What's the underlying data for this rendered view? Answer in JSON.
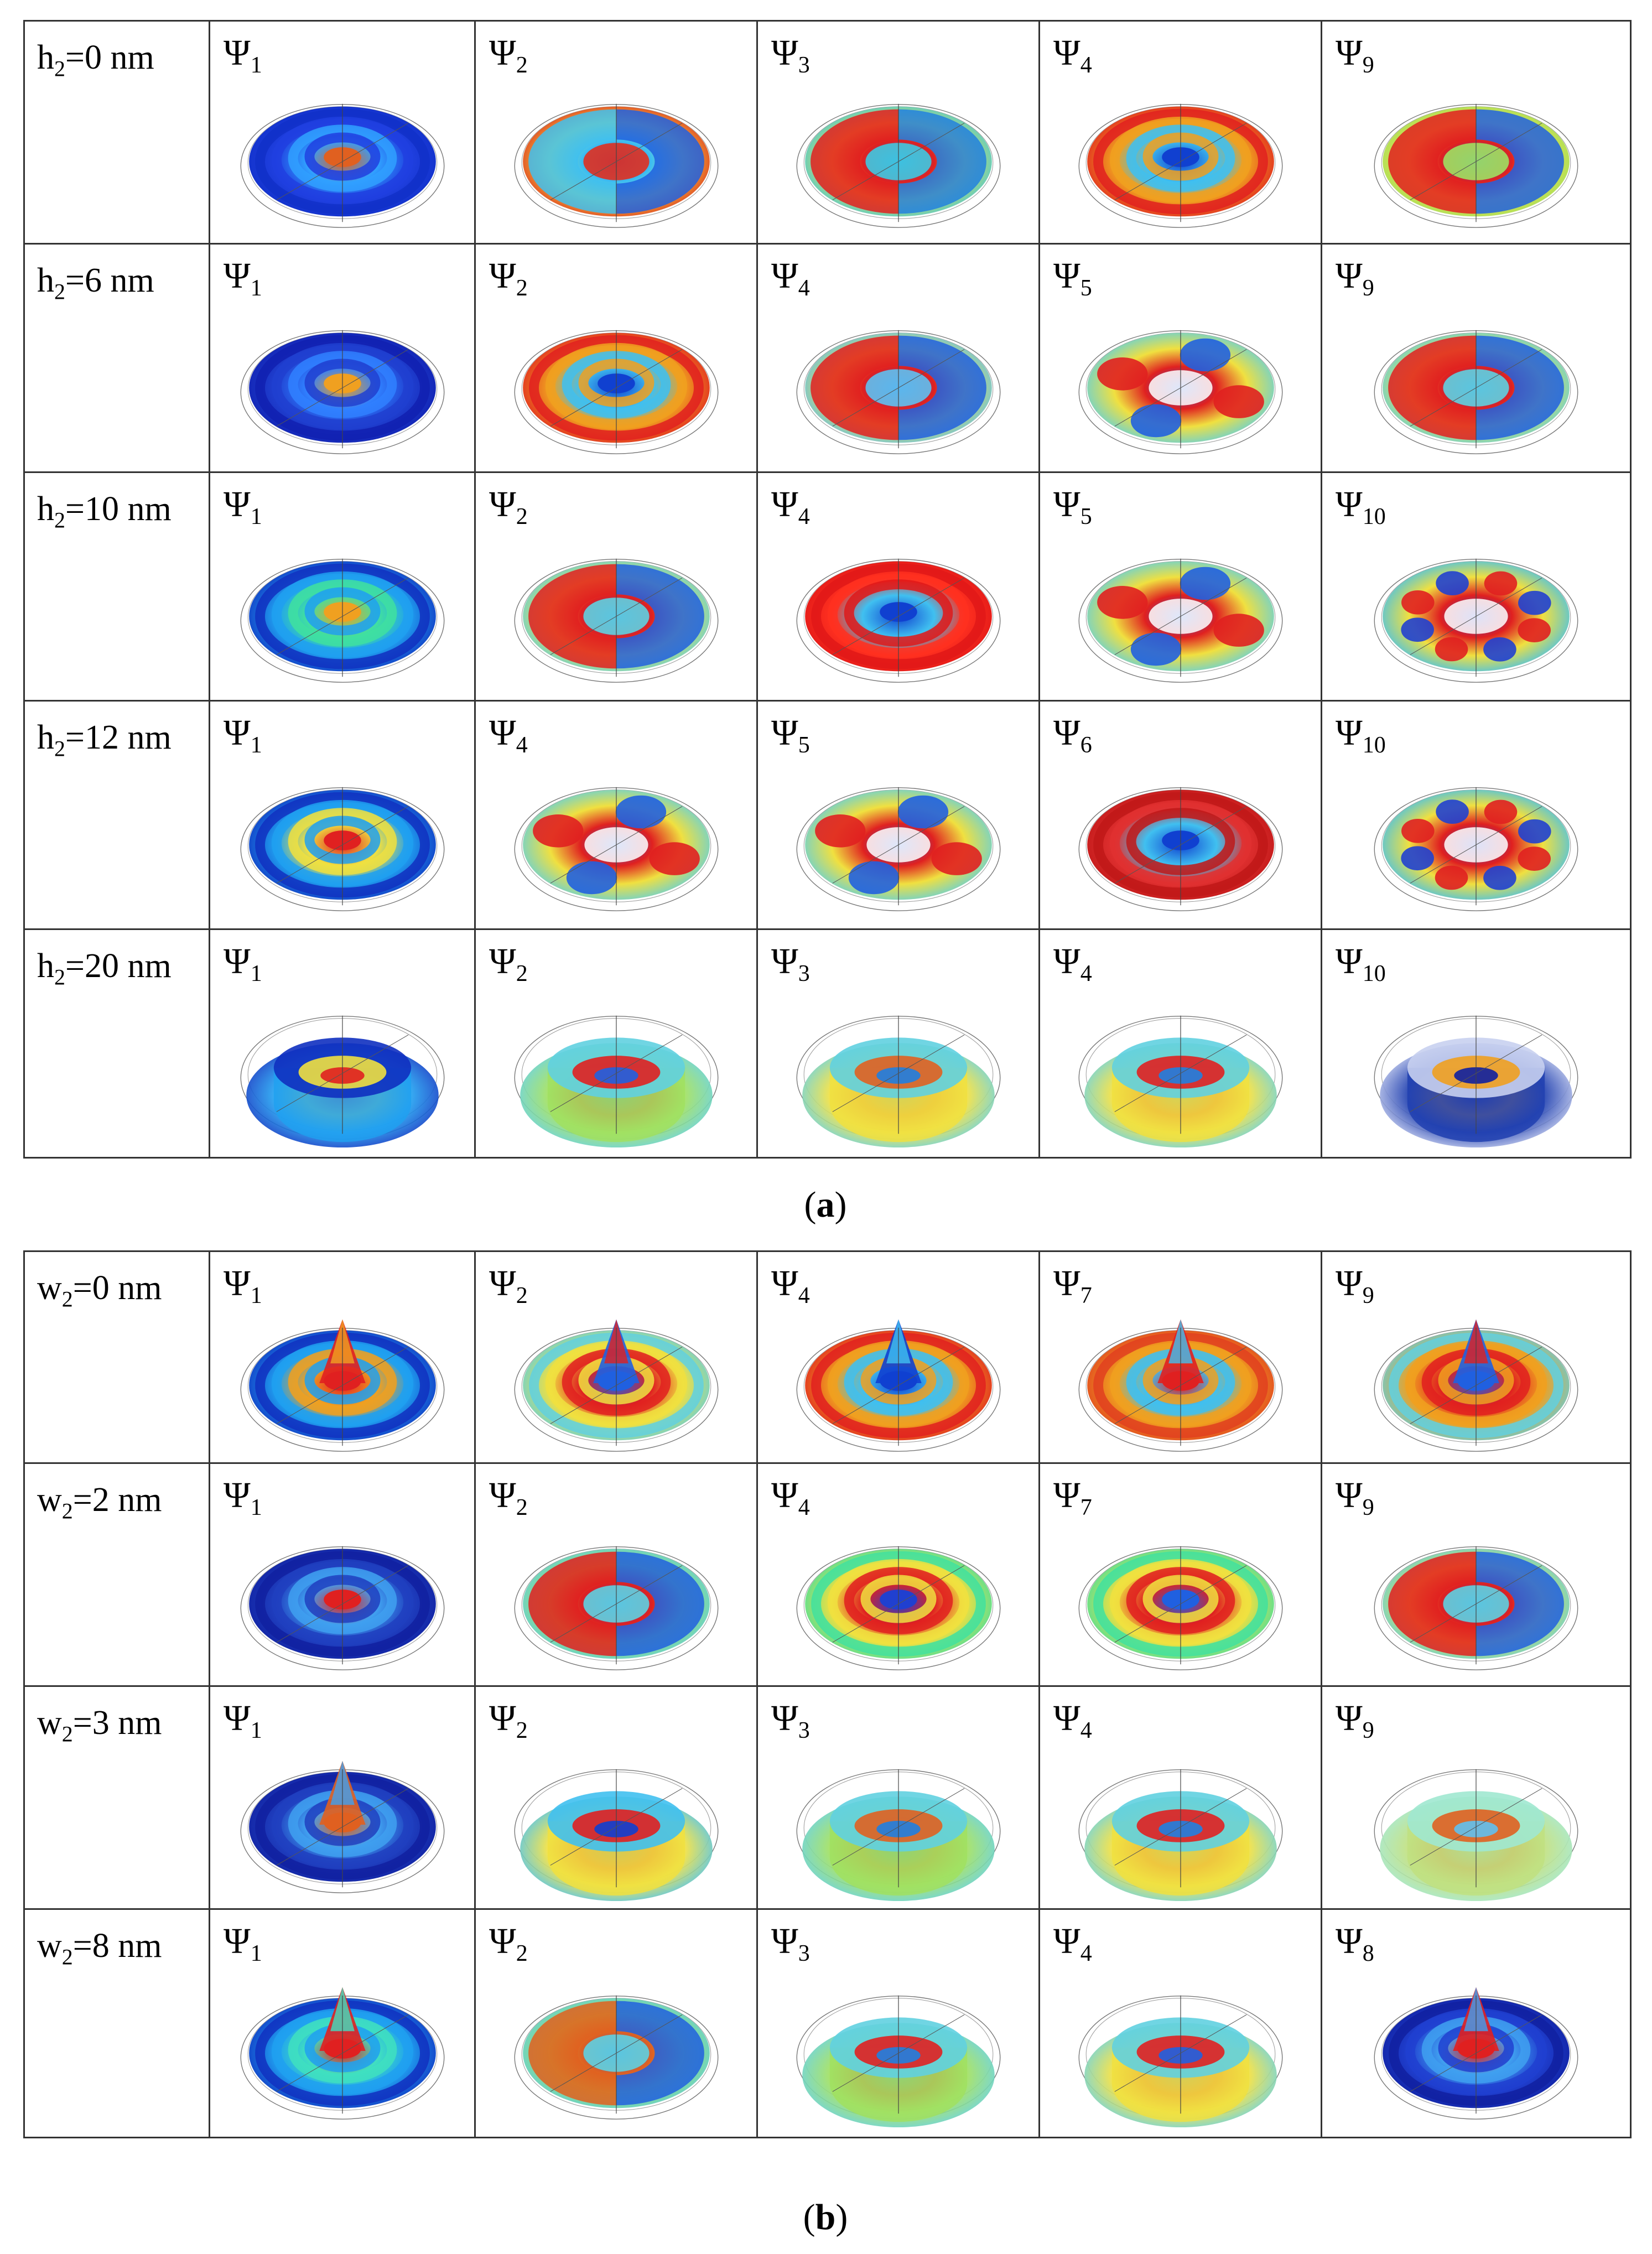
{
  "panel_a": {
    "caption_letter": "a",
    "rows": [
      {
        "label_var": "h",
        "label_sub": "2",
        "label_value": "=0 nm",
        "cells": [
          {
            "psi_sub": "1",
            "scheme": [
              "#1030c8",
              "#2040e0",
              "#30a0ff",
              "#e06020"
            ],
            "shape": "disk"
          },
          {
            "psi_sub": "2",
            "scheme": [
              "#e03020",
              "#f0e040",
              "#40c0f0",
              "#2060e0"
            ],
            "shape": "lobes2"
          },
          {
            "psi_sub": "3",
            "scheme": [
              "#40c8e0",
              "#f0e040",
              "#e02020",
              "#2080e0"
            ],
            "shape": "lobes2"
          },
          {
            "psi_sub": "4",
            "scheme": [
              "#e02020",
              "#f0a020",
              "#40c0f0",
              "#1040d0"
            ],
            "shape": "rings"
          },
          {
            "psi_sub": "9",
            "scheme": [
              "#a0e060",
              "#f0e040",
              "#e02020",
              "#2060e0"
            ],
            "shape": "lobes2"
          }
        ]
      },
      {
        "label_var": "h",
        "label_sub": "2",
        "label_value": "=6 nm",
        "cells": [
          {
            "psi_sub": "1",
            "scheme": [
              "#1020b0",
              "#2040d0",
              "#3080ff",
              "#f0a020"
            ],
            "shape": "disk"
          },
          {
            "psi_sub": "2",
            "scheme": [
              "#e02020",
              "#f0a020",
              "#40c0f0",
              "#1040d0"
            ],
            "shape": "rings"
          },
          {
            "psi_sub": "4",
            "scheme": [
              "#60c0f0",
              "#f0e040",
              "#e02020",
              "#2060e0"
            ],
            "shape": "lobes2"
          },
          {
            "psi_sub": "5",
            "scheme": [
              "#60d0e0",
              "#f0e040",
              "#e02020",
              "#2060e0"
            ],
            "shape": "lobes4"
          },
          {
            "psi_sub": "9",
            "scheme": [
              "#60d0e0",
              "#f0e040",
              "#e02020",
              "#2060e0"
            ],
            "shape": "lobes2"
          }
        ]
      },
      {
        "label_var": "h",
        "label_sub": "2",
        "label_value": "=10 nm",
        "cells": [
          {
            "psi_sub": "1",
            "scheme": [
              "#1030c0",
              "#20a0f0",
              "#40e0a0",
              "#f0a020"
            ],
            "shape": "rings"
          },
          {
            "psi_sub": "2",
            "scheme": [
              "#60d0e0",
              "#f0e040",
              "#e02020",
              "#2060e0"
            ],
            "shape": "lobes2"
          },
          {
            "psi_sub": "4",
            "scheme": [
              "#e01818",
              "#ff3020",
              "#40c0f0",
              "#1040d0"
            ],
            "shape": "torus"
          },
          {
            "psi_sub": "5",
            "scheme": [
              "#60d0e0",
              "#f0e040",
              "#e02020",
              "#2060e0"
            ],
            "shape": "lobes4"
          },
          {
            "psi_sub": "10",
            "scheme": [
              "#40c0f0",
              "#f0e040",
              "#e02020",
              "#2040d0"
            ],
            "shape": "lobes8"
          }
        ]
      },
      {
        "label_var": "h",
        "label_sub": "2",
        "label_value": "=12 nm",
        "cells": [
          {
            "psi_sub": "1",
            "scheme": [
              "#1030c0",
              "#20a0f0",
              "#f0e040",
              "#e02020"
            ],
            "shape": "rings"
          },
          {
            "psi_sub": "4",
            "scheme": [
              "#60d0e0",
              "#f0e040",
              "#e02020",
              "#2060e0"
            ],
            "shape": "lobes4"
          },
          {
            "psi_sub": "5",
            "scheme": [
              "#60d0e0",
              "#f0e040",
              "#e02020",
              "#2060e0"
            ],
            "shape": "lobes4"
          },
          {
            "psi_sub": "6",
            "scheme": [
              "#c01818",
              "#e03030",
              "#40c0f0",
              "#1040d0"
            ],
            "shape": "torus"
          },
          {
            "psi_sub": "10",
            "scheme": [
              "#40c0f0",
              "#f0e040",
              "#e02020",
              "#2040d0"
            ],
            "shape": "lobes8"
          }
        ]
      },
      {
        "label_var": "h",
        "label_sub": "2",
        "label_value": "=20 nm",
        "cells": [
          {
            "psi_sub": "1",
            "scheme": [
              "#1030c0",
              "#20a0f0",
              "#f0e040",
              "#e02020"
            ],
            "shape": "cylinder"
          },
          {
            "psi_sub": "2",
            "scheme": [
              "#60d0e0",
              "#a0e060",
              "#e02020",
              "#2060e0"
            ],
            "shape": "cylinder"
          },
          {
            "psi_sub": "3",
            "scheme": [
              "#60d0e0",
              "#f0e040",
              "#e06020",
              "#2080e0"
            ],
            "shape": "cylinder"
          },
          {
            "psi_sub": "4",
            "scheme": [
              "#60d0e0",
              "#f0e040",
              "#e02020",
              "#2080e0"
            ],
            "shape": "cylinder"
          },
          {
            "psi_sub": "10",
            "scheme": [
              "#c8d0f0",
              "#2040b0",
              "#f0a020",
              "#1020a0"
            ],
            "shape": "cylinder"
          }
        ]
      }
    ]
  },
  "panel_b": {
    "caption_letter": "b",
    "rows": [
      {
        "label_var": "w",
        "label_sub": "2",
        "label_value": "=0 nm",
        "cells": [
          {
            "psi_sub": "1",
            "scheme": [
              "#1030c0",
              "#20a0f0",
              "#f0a020",
              "#e02020"
            ],
            "shape": "cone"
          },
          {
            "psi_sub": "2",
            "scheme": [
              "#60d0e0",
              "#f0e040",
              "#e02020",
              "#2060e0"
            ],
            "shape": "cone"
          },
          {
            "psi_sub": "4",
            "scheme": [
              "#e02020",
              "#f0a020",
              "#40c0f0",
              "#1040d0"
            ],
            "shape": "cone"
          },
          {
            "psi_sub": "7",
            "scheme": [
              "#e04020",
              "#f0a020",
              "#40c0f0",
              "#e02020"
            ],
            "shape": "cone"
          },
          {
            "psi_sub": "9",
            "scheme": [
              "#60d0e0",
              "#f0a020",
              "#e02020",
              "#2060e0"
            ],
            "shape": "cone"
          }
        ]
      },
      {
        "label_var": "w",
        "label_sub": "2",
        "label_value": "=2 nm",
        "cells": [
          {
            "psi_sub": "1",
            "scheme": [
              "#1020a0",
              "#2040c0",
              "#40a0f0",
              "#e02020"
            ],
            "shape": "disk"
          },
          {
            "psi_sub": "2",
            "scheme": [
              "#60d0e0",
              "#a0e060",
              "#e02020",
              "#2060e0"
            ],
            "shape": "lobes2"
          },
          {
            "psi_sub": "4",
            "scheme": [
              "#40e0a0",
              "#f0e040",
              "#e02020",
              "#2040d0"
            ],
            "shape": "rings"
          },
          {
            "psi_sub": "7",
            "scheme": [
              "#40e0a0",
              "#f0e040",
              "#e02020",
              "#2060e0"
            ],
            "shape": "rings"
          },
          {
            "psi_sub": "9",
            "scheme": [
              "#60d0e0",
              "#f0e040",
              "#e02020",
              "#2060e0"
            ],
            "shape": "lobes2"
          }
        ]
      },
      {
        "label_var": "w",
        "label_sub": "2",
        "label_value": "=3 nm",
        "cells": [
          {
            "psi_sub": "1",
            "scheme": [
              "#1020a0",
              "#2040c0",
              "#40a0f0",
              "#e06020"
            ],
            "shape": "cone"
          },
          {
            "psi_sub": "2",
            "scheme": [
              "#40c0f0",
              "#f0e040",
              "#e02020",
              "#1040d0"
            ],
            "shape": "cylinder"
          },
          {
            "psi_sub": "3",
            "scheme": [
              "#60d0e0",
              "#a0e060",
              "#e06020",
              "#2080e0"
            ],
            "shape": "cylinder"
          },
          {
            "psi_sub": "4",
            "scheme": [
              "#60d0e0",
              "#f0e040",
              "#e02020",
              "#2080e0"
            ],
            "shape": "cylinder"
          },
          {
            "psi_sub": "9",
            "scheme": [
              "#a0e8d0",
              "#c0e080",
              "#e06020",
              "#60c0f0"
            ],
            "shape": "cylinder"
          }
        ]
      },
      {
        "label_var": "w",
        "label_sub": "2",
        "label_value": "=8 nm",
        "cells": [
          {
            "psi_sub": "1",
            "scheme": [
              "#1030c0",
              "#20a0f0",
              "#40e0c0",
              "#e02020"
            ],
            "shape": "cone"
          },
          {
            "psi_sub": "2",
            "scheme": [
              "#60d0e0",
              "#a0e060",
              "#e06020",
              "#2060e0"
            ],
            "shape": "lobes2"
          },
          {
            "psi_sub": "3",
            "scheme": [
              "#60d0e0",
              "#a0e060",
              "#e02020",
              "#2080e0"
            ],
            "shape": "cylinder"
          },
          {
            "psi_sub": "4",
            "scheme": [
              "#60d0e0",
              "#f0e040",
              "#e02020",
              "#2060e0"
            ],
            "shape": "cylinder"
          },
          {
            "psi_sub": "8",
            "scheme": [
              "#1020a0",
              "#2040d0",
              "#40a0f0",
              "#e02020"
            ],
            "shape": "cone"
          }
        ]
      }
    ]
  }
}
